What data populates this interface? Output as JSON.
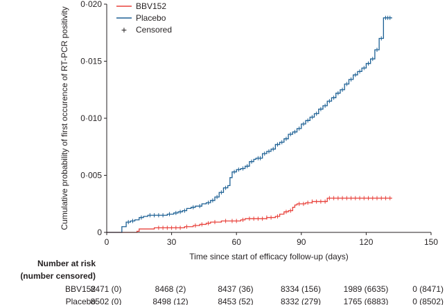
{
  "chart_data": {
    "type": "line",
    "xlabel": "Time since start of efficacy follow-up (days)",
    "ylabel": "Cumulative probability of first occurence of RT-PCR positivity",
    "xlim": [
      0,
      150
    ],
    "ylim": [
      0,
      0.02
    ],
    "x_ticks": [
      0,
      30,
      60,
      90,
      120,
      150
    ],
    "x_tick_labels": [
      "0",
      "30",
      "60",
      "90",
      "120",
      "150"
    ],
    "y_ticks": [
      0,
      0.005,
      0.01,
      0.015,
      0.02
    ],
    "y_tick_labels": [
      "0",
      "0·005",
      "0·010",
      "0·015",
      "0·020"
    ],
    "grid": false,
    "legend_position": "top-left",
    "legend": [
      {
        "label": "BBV152",
        "color": "#e8403a",
        "marker": "line"
      },
      {
        "label": "Placebo",
        "color": "#1b5f93",
        "marker": "line"
      },
      {
        "label": "Censored",
        "color": "#231f20",
        "marker": "plus"
      }
    ],
    "series": [
      {
        "name": "BBV152",
        "color": "#e8403a",
        "step_points": [
          [
            0,
            0
          ],
          [
            14,
            0.0001
          ],
          [
            15,
            0.0003
          ],
          [
            22,
            0.0004
          ],
          [
            25,
            0.0004
          ],
          [
            34,
            0.0004
          ],
          [
            36,
            0.0005
          ],
          [
            40,
            0.0006
          ],
          [
            43,
            0.0007
          ],
          [
            46,
            0.0008
          ],
          [
            48,
            0.0009
          ],
          [
            52,
            0.0009
          ],
          [
            53,
            0.001
          ],
          [
            57,
            0.001
          ],
          [
            62,
            0.0011
          ],
          [
            64,
            0.0012
          ],
          [
            72,
            0.0012
          ],
          [
            74,
            0.0013
          ],
          [
            78,
            0.0014
          ],
          [
            80,
            0.0016
          ],
          [
            82,
            0.0018
          ],
          [
            84,
            0.0019
          ],
          [
            86,
            0.0022
          ],
          [
            87,
            0.0024
          ],
          [
            88,
            0.0025
          ],
          [
            90,
            0.0025
          ],
          [
            92,
            0.0026
          ],
          [
            95,
            0.0027
          ],
          [
            99,
            0.0027
          ],
          [
            102,
            0.003
          ],
          [
            104,
            0.003
          ],
          [
            132,
            0.003
          ]
        ],
        "censor_x": [
          24,
          26,
          28,
          30,
          32,
          34,
          37,
          41,
          44,
          47,
          50,
          55,
          58,
          60,
          63,
          66,
          68,
          70,
          72,
          74,
          76,
          79,
          83,
          85,
          89,
          91,
          93,
          95,
          97,
          99,
          101,
          103,
          105,
          107,
          109,
          111,
          113,
          115,
          117,
          119,
          121,
          123,
          125,
          127,
          129,
          131
        ]
      },
      {
        "name": "Placebo",
        "color": "#1b5f93",
        "step_points": [
          [
            0,
            0
          ],
          [
            6,
            0
          ],
          [
            7,
            0.0005
          ],
          [
            9,
            0.0009
          ],
          [
            11,
            0.001
          ],
          [
            13,
            0.0011
          ],
          [
            15,
            0.0013
          ],
          [
            17,
            0.0014
          ],
          [
            19,
            0.0015
          ],
          [
            25,
            0.0015
          ],
          [
            28,
            0.0016
          ],
          [
            31,
            0.0017
          ],
          [
            33,
            0.0018
          ],
          [
            35,
            0.0019
          ],
          [
            37,
            0.0021
          ],
          [
            39,
            0.0022
          ],
          [
            41,
            0.0023
          ],
          [
            44,
            0.0025
          ],
          [
            46,
            0.0026
          ],
          [
            48,
            0.0028
          ],
          [
            50,
            0.0031
          ],
          [
            52,
            0.0035
          ],
          [
            54,
            0.0039
          ],
          [
            56,
            0.0041
          ],
          [
            57,
            0.0048
          ],
          [
            58,
            0.0053
          ],
          [
            60,
            0.0055
          ],
          [
            62,
            0.0056
          ],
          [
            64,
            0.0058
          ],
          [
            66,
            0.0062
          ],
          [
            68,
            0.0064
          ],
          [
            69,
            0.0065
          ],
          [
            72,
            0.0069
          ],
          [
            74,
            0.0071
          ],
          [
            76,
            0.0073
          ],
          [
            78,
            0.0077
          ],
          [
            80,
            0.0079
          ],
          [
            82,
            0.0082
          ],
          [
            84,
            0.0086
          ],
          [
            86,
            0.0088
          ],
          [
            88,
            0.0091
          ],
          [
            90,
            0.0095
          ],
          [
            92,
            0.0098
          ],
          [
            94,
            0.0101
          ],
          [
            96,
            0.0104
          ],
          [
            98,
            0.0108
          ],
          [
            100,
            0.0111
          ],
          [
            102,
            0.0115
          ],
          [
            104,
            0.0118
          ],
          [
            106,
            0.0122
          ],
          [
            108,
            0.0125
          ],
          [
            110,
            0.013
          ],
          [
            112,
            0.0134
          ],
          [
            114,
            0.0138
          ],
          [
            116,
            0.0141
          ],
          [
            118,
            0.0144
          ],
          [
            120,
            0.0148
          ],
          [
            122,
            0.0152
          ],
          [
            124,
            0.016
          ],
          [
            126,
            0.017
          ],
          [
            128,
            0.0188
          ],
          [
            132,
            0.0188
          ]
        ],
        "censor_x": [
          10,
          12,
          16,
          20,
          22,
          24,
          26,
          29,
          32,
          34,
          36,
          40,
          43,
          47,
          49,
          51,
          53,
          55,
          59,
          61,
          63,
          65,
          67,
          70,
          71,
          73,
          75,
          77,
          79,
          81,
          83,
          85,
          87,
          89,
          91,
          93,
          95,
          97,
          99,
          101,
          103,
          105,
          107,
          109,
          111,
          113,
          115,
          117,
          119,
          121,
          123,
          125,
          127,
          129,
          130,
          131
        ]
      }
    ]
  },
  "risk_table": {
    "title_line1": "Number at risk",
    "title_line2": "(number censored)",
    "rows": [
      {
        "label": "BBV152",
        "values": [
          "8471 (0)",
          "8468 (2)",
          "8437 (36)",
          "8334 (156)",
          "1989 (6635)",
          "0 (8471)"
        ]
      },
      {
        "label": "Placebo",
        "values": [
          "8502 (0)",
          "8498 (12)",
          "8453 (52)",
          "8332 (279)",
          "1765 (6883)",
          "0 (8502)"
        ]
      }
    ]
  }
}
